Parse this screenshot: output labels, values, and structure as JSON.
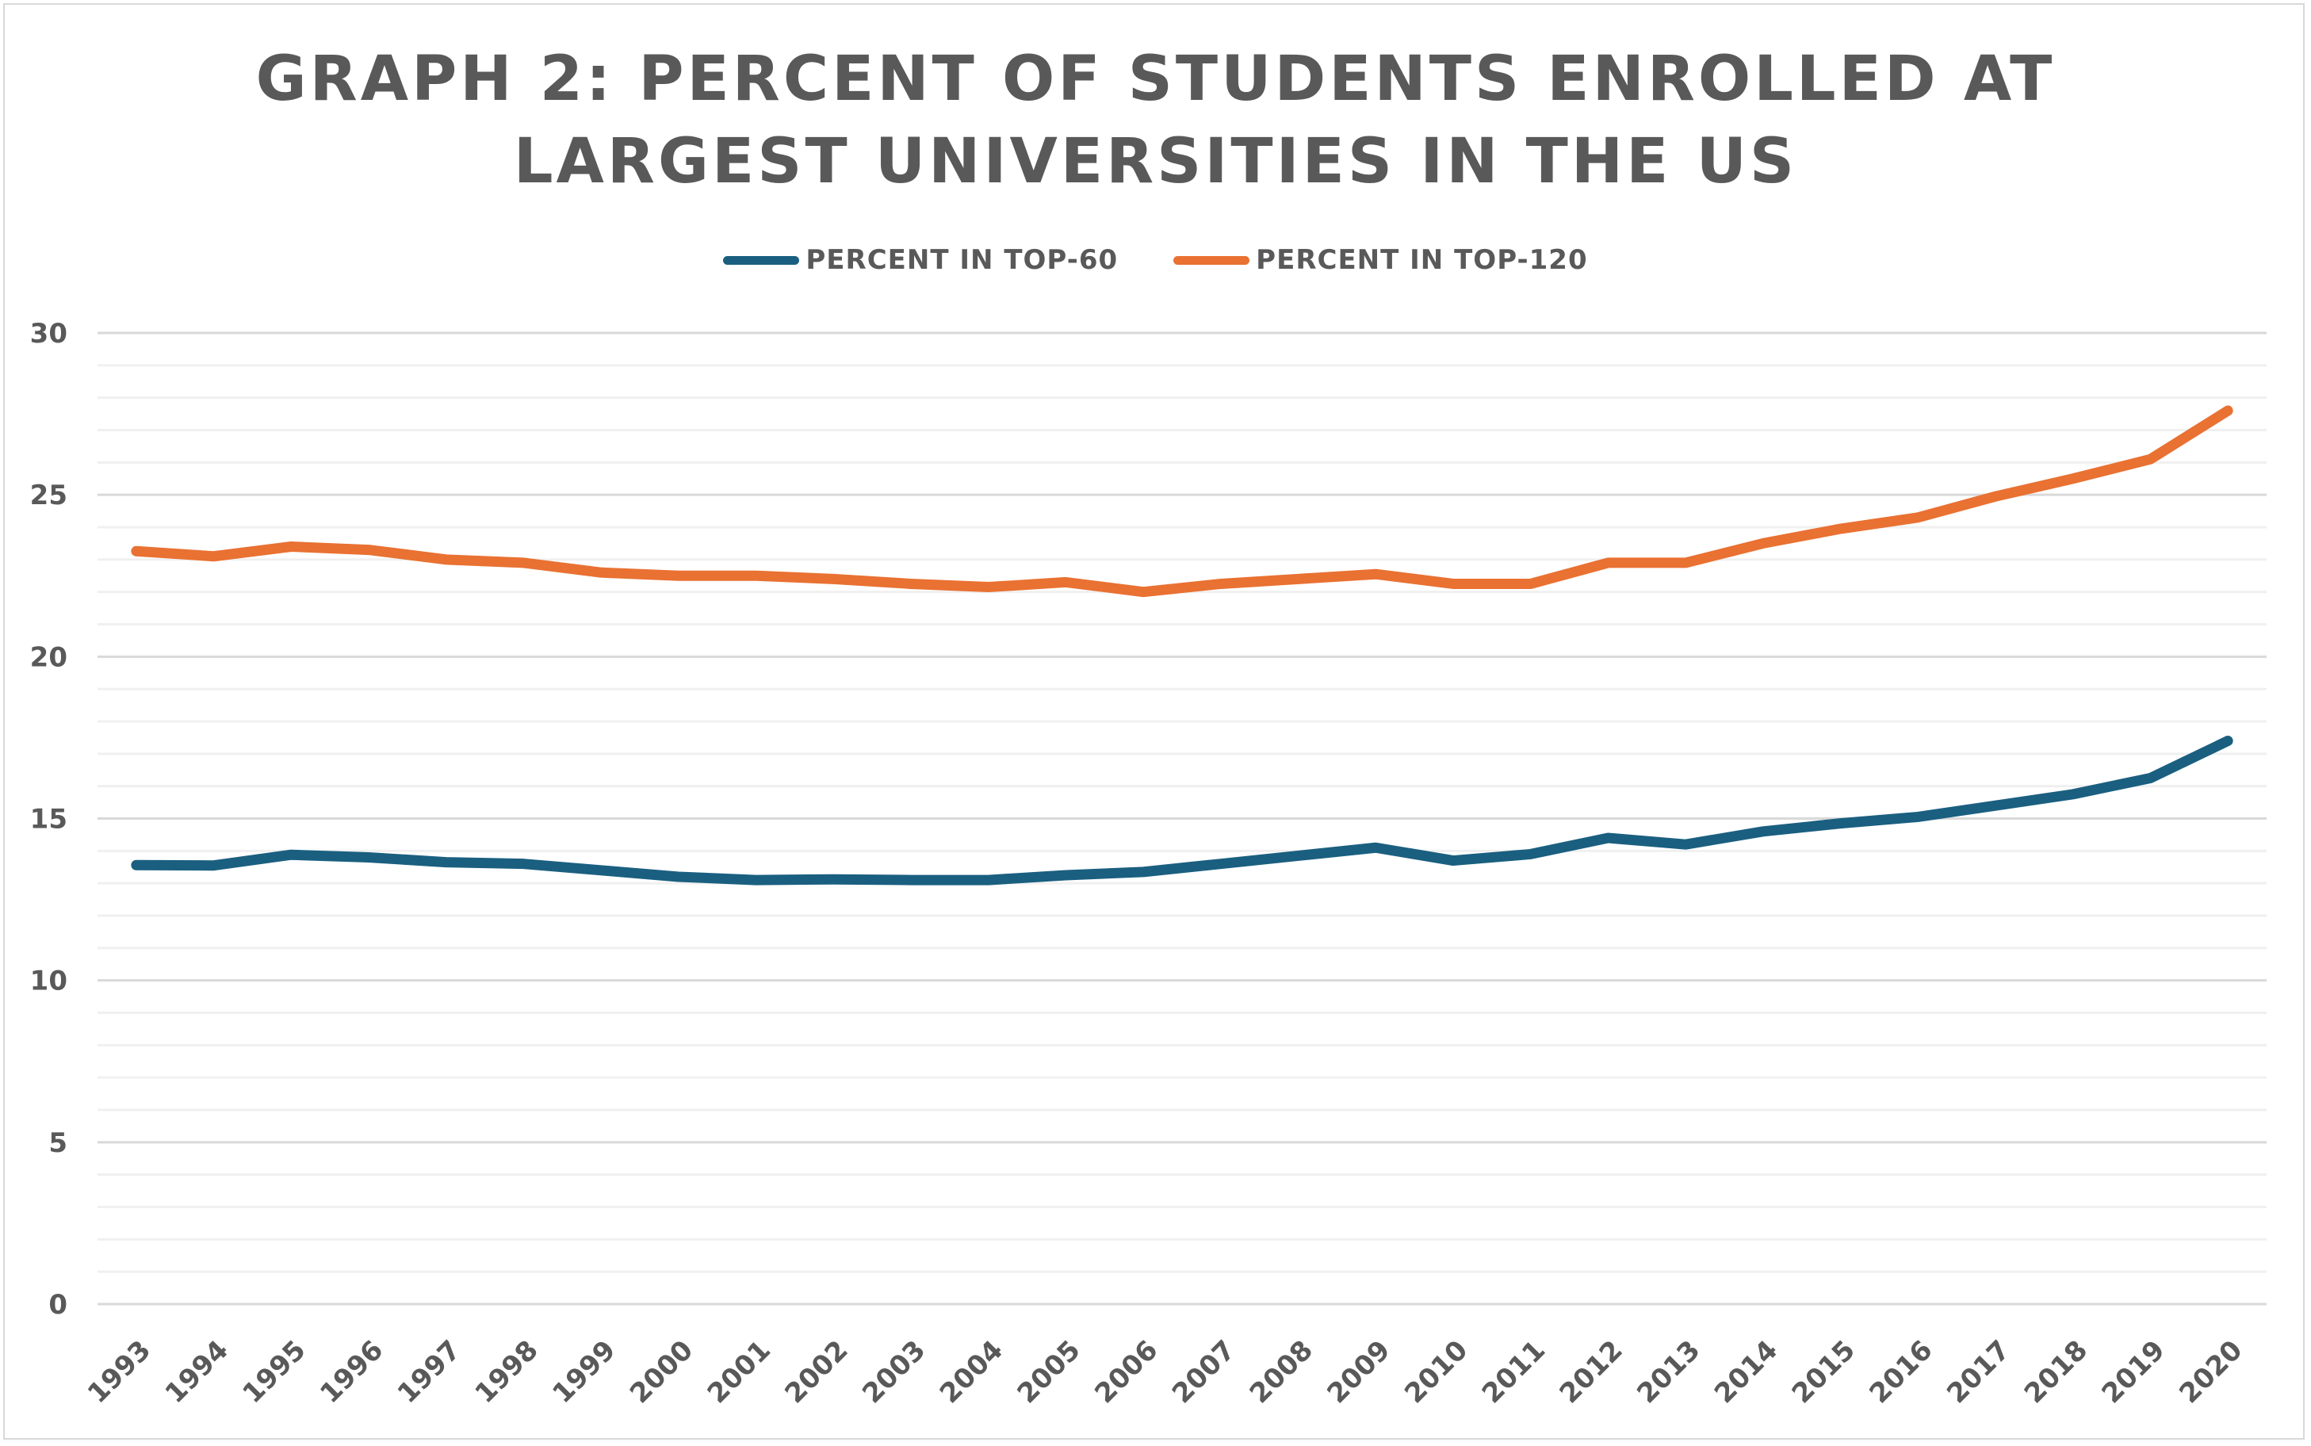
{
  "chart_data": {
    "type": "line",
    "title": "GRAPH 2: PERCENT OF STUDENTS ENROLLED AT LARGEST UNIVERSITIES IN THE US",
    "title_lines": [
      "GRAPH 2: PERCENT OF STUDENTS ENROLLED AT",
      "LARGEST UNIVERSITIES IN THE US"
    ],
    "xlabel": "",
    "ylabel": "",
    "ylim": [
      0,
      30
    ],
    "yticks": [
      "0",
      "5",
      "10",
      "15",
      "20",
      "25",
      "30"
    ],
    "grid": true,
    "legend_placement": "top-center",
    "x": [
      "1993",
      "1994",
      "1995",
      "1996",
      "1997",
      "1998",
      "1999",
      "2000",
      "2001",
      "2002",
      "2003",
      "2004",
      "2005",
      "2006",
      "2007",
      "2008",
      "2009",
      "2010",
      "2011",
      "2012",
      "2013",
      "2014",
      "2015",
      "2016",
      "2017",
      "2018",
      "2019",
      "2020"
    ],
    "series": [
      {
        "name": "PERCENT IN TOP-60",
        "color": "#1a5f80",
        "values": [
          13.56,
          13.55,
          13.88,
          13.8,
          13.65,
          13.6,
          13.4,
          13.2,
          13.1,
          13.12,
          13.1,
          13.1,
          13.25,
          13.35,
          13.6,
          13.85,
          14.1,
          13.7,
          13.9,
          14.4,
          14.2,
          14.6,
          14.85,
          15.05,
          15.4,
          15.75,
          16.25,
          17.4
        ]
      },
      {
        "name": "PERCENT IN TOP-120",
        "color": "#e97132",
        "values": [
          23.26,
          23.1,
          23.4,
          23.3,
          23.0,
          22.9,
          22.6,
          22.5,
          22.5,
          22.4,
          22.25,
          22.15,
          22.3,
          22.0,
          22.25,
          22.4,
          22.55,
          22.25,
          22.25,
          22.9,
          22.9,
          23.5,
          23.95,
          24.3,
          24.95,
          25.5,
          26.1,
          27.6
        ]
      }
    ]
  }
}
